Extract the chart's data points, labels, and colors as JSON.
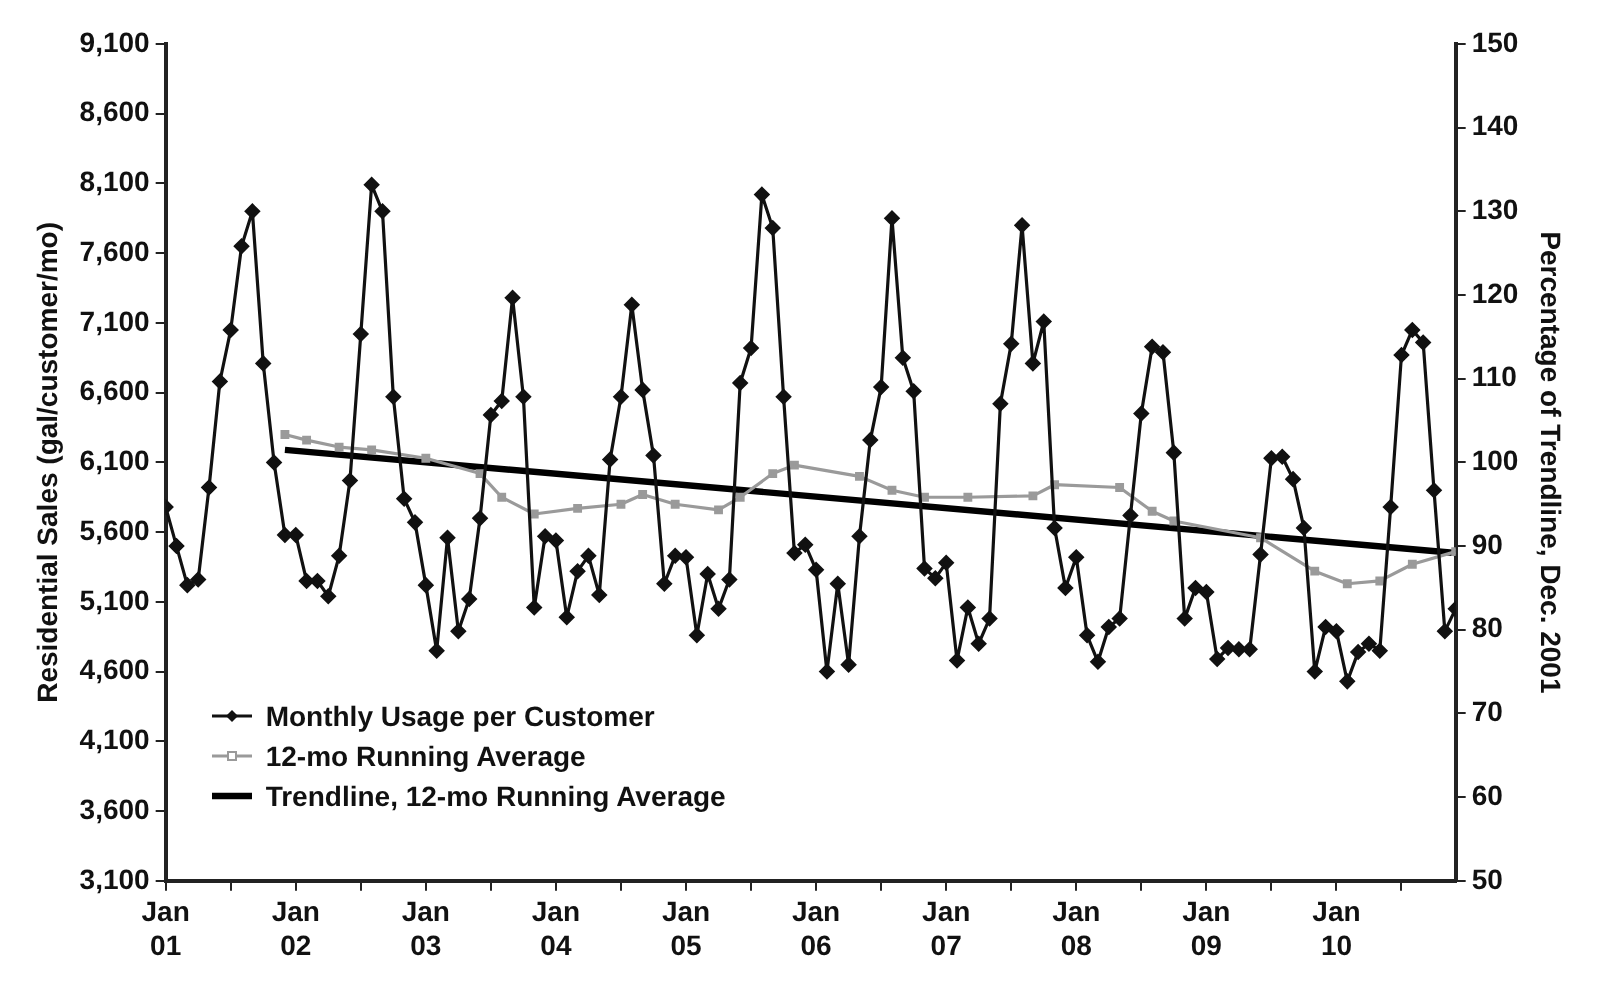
{
  "chart_data": {
    "type": "line",
    "ylabel": "Residential Sales (gal/customer/mo)",
    "y2label": "Percentage of Trendline, Dec. 2001",
    "x": [
      "2001-01",
      "2001-02",
      "2001-03",
      "2001-04",
      "2001-05",
      "2001-06",
      "2001-07",
      "2001-08",
      "2001-09",
      "2001-10",
      "2001-11",
      "2001-12",
      "2002-01",
      "2002-02",
      "2002-03",
      "2002-04",
      "2002-05",
      "2002-06",
      "2002-07",
      "2002-08",
      "2002-09",
      "2002-10",
      "2002-11",
      "2002-12",
      "2003-01",
      "2003-02",
      "2003-03",
      "2003-04",
      "2003-05",
      "2003-06",
      "2003-07",
      "2003-08",
      "2003-09",
      "2003-10",
      "2003-11",
      "2003-12",
      "2004-01",
      "2004-02",
      "2004-03",
      "2004-04",
      "2004-05",
      "2004-06",
      "2004-07",
      "2004-08",
      "2004-09",
      "2004-10",
      "2004-11",
      "2004-12",
      "2005-01",
      "2005-02",
      "2005-03",
      "2005-04",
      "2005-05",
      "2005-06",
      "2005-07",
      "2005-08",
      "2005-09",
      "2005-10",
      "2005-11",
      "2005-12",
      "2006-01",
      "2006-02",
      "2006-03",
      "2006-04",
      "2006-05",
      "2006-06",
      "2006-07",
      "2006-08",
      "2006-09",
      "2006-10",
      "2006-11",
      "2006-12",
      "2007-01",
      "2007-02",
      "2007-03",
      "2007-04",
      "2007-05",
      "2007-06",
      "2007-07",
      "2007-08",
      "2007-09",
      "2007-10",
      "2007-11",
      "2007-12",
      "2008-01",
      "2008-02",
      "2008-03",
      "2008-04",
      "2008-05",
      "2008-06",
      "2008-07",
      "2008-08",
      "2008-09",
      "2008-10",
      "2008-11",
      "2008-12",
      "2009-01",
      "2009-02",
      "2009-03",
      "2009-04",
      "2009-05",
      "2009-06",
      "2009-07",
      "2009-08",
      "2009-09",
      "2009-10",
      "2009-11",
      "2009-12",
      "2010-01",
      "2010-02",
      "2010-03",
      "2010-04",
      "2010-05",
      "2010-06",
      "2010-07",
      "2010-08",
      "2010-09",
      "2010-10",
      "2010-11",
      "2010-12"
    ],
    "series": [
      {
        "name": "Monthly Usage per Customer",
        "color": "#111111",
        "marker": "diamond",
        "values": [
          5780,
          5500,
          5220,
          5260,
          5920,
          6680,
          7050,
          7650,
          7900,
          6810,
          6100,
          5580,
          5580,
          5250,
          5250,
          5140,
          5430,
          5970,
          7020,
          8090,
          7900,
          6570,
          5840,
          5670,
          5220,
          4750,
          5560,
          4890,
          5120,
          5700,
          6440,
          6540,
          7280,
          6570,
          5060,
          5570,
          5540,
          4990,
          5320,
          5430,
          5150,
          6120,
          6570,
          7230,
          6620,
          6150,
          5230,
          5430,
          5420,
          4860,
          5300,
          5050,
          5260,
          6670,
          6920,
          8020,
          7780,
          6570,
          5450,
          5510,
          5330,
          4600,
          5230,
          4650,
          5570,
          6260,
          6640,
          7850,
          6850,
          6610,
          5340,
          5270,
          5380,
          4680,
          5060,
          4800,
          4980,
          6520,
          6950,
          7800,
          6810,
          7110,
          5630,
          5200,
          5420,
          4860,
          4670,
          4920,
          4980,
          5720,
          6450,
          6930,
          6890,
          6170,
          4980,
          5200,
          5170,
          4690,
          4770,
          4760,
          4760,
          5440,
          6130,
          6140,
          5980,
          5630,
          4600,
          4920,
          4890,
          4530,
          4740,
          4800,
          4750,
          5780,
          6870,
          7050,
          6960,
          5900,
          4890,
          5050
        ]
      },
      {
        "name": "12-mo Running Average",
        "color": "#9a9a9a",
        "marker": "square",
        "x": [
          "2001-12",
          "2002-02",
          "2002-05",
          "2002-08",
          "2003-01",
          "2003-06",
          "2003-08",
          "2003-11",
          "2004-03",
          "2004-07",
          "2004-09",
          "2004-12",
          "2005-04",
          "2005-06",
          "2005-09",
          "2005-11",
          "2006-05",
          "2006-08",
          "2006-11",
          "2007-03",
          "2007-09",
          "2007-11",
          "2008-05",
          "2008-08",
          "2008-10",
          "2009-06",
          "2009-11",
          "2010-02",
          "2010-05",
          "2010-08",
          "2010-12"
        ],
        "values": [
          6300,
          6260,
          6210,
          6190,
          6130,
          6020,
          5850,
          5730,
          5770,
          5800,
          5870,
          5800,
          5760,
          5850,
          6020,
          6080,
          6000,
          5900,
          5850,
          5850,
          5860,
          5940,
          5920,
          5750,
          5680,
          5560,
          5320,
          5230,
          5250,
          5370,
          5460
        ]
      },
      {
        "name": "Trendline, 12-mo Running Average",
        "color": "#000000",
        "marker": "none",
        "x": [
          "2001-12",
          "2010-12"
        ],
        "values": [
          6190,
          5450
        ]
      }
    ],
    "xlim": [
      "2001-01",
      "2010-12"
    ],
    "xticks": [
      {
        "value": "2001-01",
        "label": "Jan 01"
      },
      {
        "value": "2001-07",
        "label": null
      },
      {
        "value": "2002-01",
        "label": "Jan 02"
      },
      {
        "value": "2002-07",
        "label": null
      },
      {
        "value": "2003-01",
        "label": "Jan 03"
      },
      {
        "value": "2003-07",
        "label": null
      },
      {
        "value": "2004-01",
        "label": "Jan 04"
      },
      {
        "value": "2004-07",
        "label": null
      },
      {
        "value": "2005-01",
        "label": "Jan 05"
      },
      {
        "value": "2005-07",
        "label": null
      },
      {
        "value": "2006-01",
        "label": "Jan 06"
      },
      {
        "value": "2006-07",
        "label": null
      },
      {
        "value": "2007-01",
        "label": "Jan 07"
      },
      {
        "value": "2007-07",
        "label": null
      },
      {
        "value": "2008-01",
        "label": "Jan 08"
      },
      {
        "value": "2008-07",
        "label": null
      },
      {
        "value": "2009-01",
        "label": "Jan 09"
      },
      {
        "value": "2009-07",
        "label": null
      },
      {
        "value": "2010-01",
        "label": "Jan 10"
      },
      {
        "value": "2010-07",
        "label": null
      }
    ],
    "ylim": [
      3100,
      9100
    ],
    "yticks": [
      {
        "value": 3100,
        "label": "3,100"
      },
      {
        "value": 3600,
        "label": "3,600"
      },
      {
        "value": 4100,
        "label": "4,100"
      },
      {
        "value": 4600,
        "label": "4,600"
      },
      {
        "value": 5100,
        "label": "5,100"
      },
      {
        "value": 5600,
        "label": "5,600"
      },
      {
        "value": 6100,
        "label": "6,100"
      },
      {
        "value": 6600,
        "label": "6,600"
      },
      {
        "value": 7100,
        "label": "7,100"
      },
      {
        "value": 7600,
        "label": "7,600"
      },
      {
        "value": 8100,
        "label": "8,100"
      },
      {
        "value": 8600,
        "label": "8,600"
      },
      {
        "value": 9100,
        "label": "9,100"
      }
    ],
    "y2lim": [
      50,
      150
    ],
    "y2ticks": [
      50,
      60,
      70,
      80,
      90,
      100,
      110,
      120,
      130,
      140,
      150
    ],
    "grid": false,
    "legend": "bottom left"
  }
}
